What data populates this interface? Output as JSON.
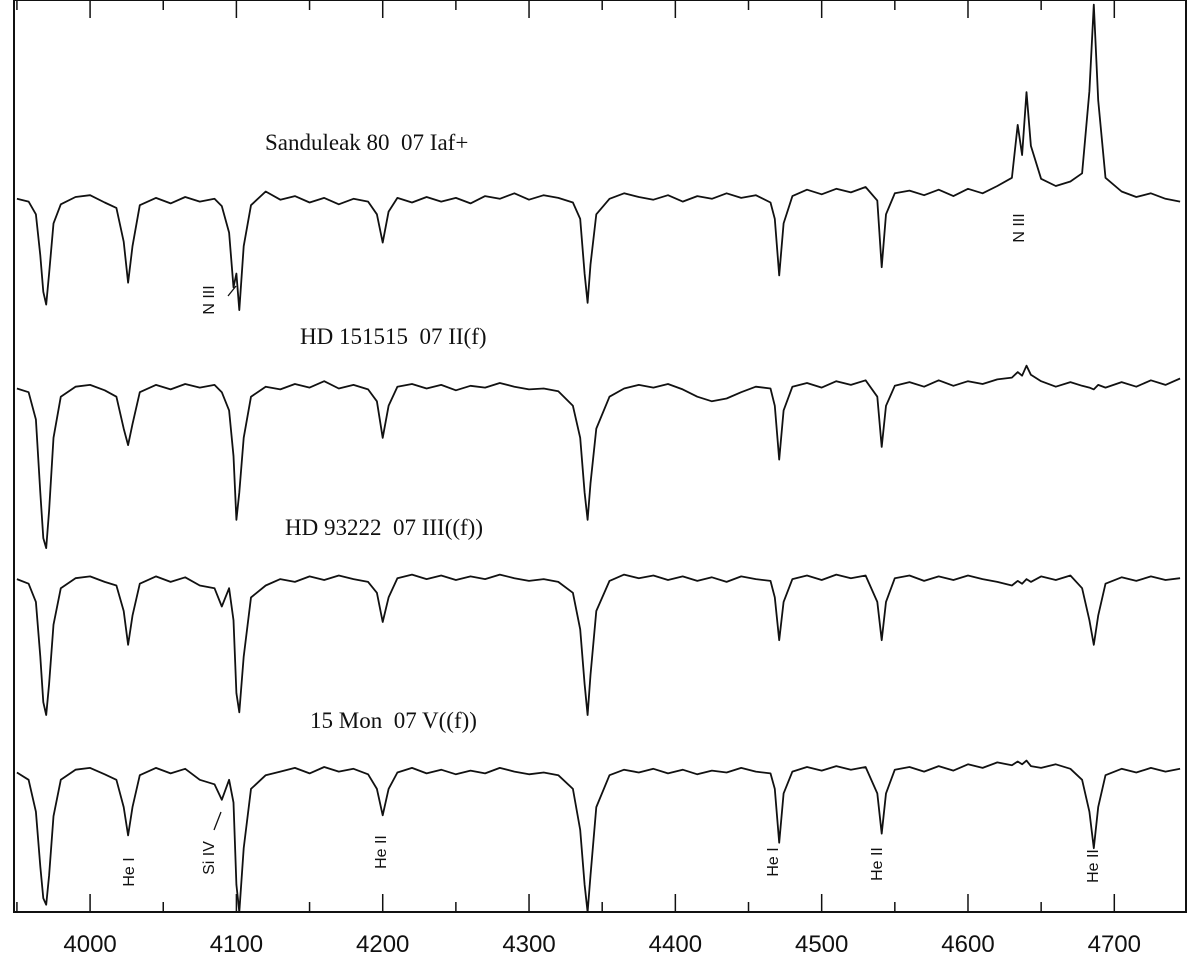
{
  "chart_data": {
    "type": "line",
    "x": [
      3950,
      3958,
      3963,
      3966,
      3968,
      3970,
      3972,
      3975,
      3980,
      3990,
      4000,
      4010,
      4018,
      4023,
      4026,
      4029,
      4034,
      4045,
      4055,
      4065,
      4075,
      4085,
      4090,
      4095,
      4098,
      4100,
      4102,
      4105,
      4110,
      4120,
      4130,
      4140,
      4150,
      4160,
      4170,
      4180,
      4190,
      4196,
      4200,
      4204,
      4210,
      4220,
      4230,
      4240,
      4250,
      4260,
      4270,
      4280,
      4290,
      4300,
      4310,
      4320,
      4330,
      4335,
      4338,
      4340,
      4342,
      4346,
      4355,
      4365,
      4375,
      4385,
      4395,
      4405,
      4415,
      4425,
      4435,
      4445,
      4455,
      4465,
      4468,
      4471,
      4474,
      4480,
      4490,
      4500,
      4510,
      4520,
      4530,
      4538,
      4541,
      4544,
      4550,
      4560,
      4570,
      4580,
      4590,
      4600,
      4610,
      4620,
      4630,
      4634,
      4637,
      4640,
      4643,
      4650,
      4660,
      4670,
      4678,
      4683,
      4686,
      4689,
      4694,
      4705,
      4715,
      4725,
      4735,
      4745
    ],
    "series": [
      {
        "name": "Sanduleak 80  07 Iaf+",
        "color": "#111111",
        "values": [
          78.2,
          77.9,
          76.5,
          72,
          68,
          66.6,
          70,
          75.5,
          77.6,
          78.4,
          78.6,
          77.8,
          77.2,
          73.5,
          69,
          73,
          77.5,
          78.3,
          77.7,
          78.4,
          77.9,
          78.2,
          77.4,
          74.5,
          68.5,
          70,
          66,
          73,
          77.5,
          79,
          78.1,
          78.5,
          77.8,
          78.3,
          77.6,
          78.2,
          77.9,
          76.5,
          73.4,
          76.8,
          78.3,
          77.8,
          78.4,
          77.9,
          78.3,
          77.7,
          78.5,
          78.2,
          78.8,
          78.1,
          78.6,
          78.3,
          77.8,
          76,
          70,
          66.8,
          71,
          76.5,
          78.2,
          78.8,
          78.4,
          78.1,
          78.6,
          77.9,
          78.5,
          78.2,
          78.8,
          78.3,
          78.6,
          77.8,
          76,
          69.8,
          75.5,
          78.5,
          79.2,
          78.7,
          79.3,
          78.9,
          79.5,
          78,
          70.7,
          76.5,
          78.8,
          79.1,
          78.6,
          79.2,
          78.5,
          79.3,
          78.8,
          79.6,
          80.5,
          86.3,
          83,
          89.9,
          84,
          80.4,
          79.6,
          80.1,
          81,
          90,
          99.5,
          89,
          80.5,
          79,
          78.4,
          78.8,
          78.2,
          77.9
        ]
      },
      {
        "name": "HD 151515  07 II(f)",
        "color": "#111111",
        "values": [
          57.4,
          57,
          54,
          46,
          41,
          39.9,
          44,
          52,
          56.5,
          57.6,
          57.8,
          57.2,
          56.5,
          53,
          51.2,
          53.5,
          57,
          57.8,
          57.3,
          57.9,
          57.5,
          57.8,
          57,
          55,
          50,
          43,
          46,
          52,
          56.5,
          57.6,
          57.3,
          57.9,
          57.5,
          58.2,
          57.4,
          57.8,
          57.3,
          56,
          52,
          55.5,
          57.6,
          57.9,
          57.4,
          57.8,
          57.2,
          57.7,
          57.5,
          58,
          57.6,
          57.3,
          57.4,
          57.1,
          55.5,
          52,
          46,
          43,
          47,
          53,
          56.5,
          57.4,
          57.8,
          57.5,
          57.9,
          57.3,
          56.5,
          56,
          56.3,
          57,
          57.6,
          57.4,
          55.5,
          49.6,
          55,
          57.6,
          58,
          57.5,
          58.2,
          57.8,
          58.3,
          56.5,
          51,
          55.5,
          57.7,
          58.1,
          57.6,
          58.3,
          57.7,
          58.2,
          57.9,
          58.4,
          58.6,
          59.2,
          58.8,
          59.9,
          58.9,
          58.2,
          57.6,
          58.1,
          57.7,
          57.5,
          57.3,
          57.8,
          57.5,
          58.1,
          57.6,
          58.3,
          57.8,
          58.5
        ]
      },
      {
        "name": "HD 93222  07 III((f))",
        "color": "#111111",
        "values": [
          36.5,
          36,
          34,
          28,
          23,
          21.6,
          25,
          31.5,
          35.5,
          36.6,
          36.8,
          36.2,
          35.8,
          33,
          29.3,
          32.5,
          36,
          36.8,
          36.2,
          36.7,
          35.8,
          35.5,
          33.5,
          35.5,
          32,
          24,
          21.9,
          28,
          34.5,
          35.8,
          36.5,
          36.2,
          36.8,
          36.4,
          36.9,
          36.5,
          36.2,
          35,
          31.8,
          34.5,
          36.6,
          37,
          36.5,
          36.9,
          36.4,
          36.8,
          36.5,
          37,
          36.6,
          36.3,
          36.5,
          36.2,
          35,
          31,
          25,
          21.6,
          26,
          33,
          36.3,
          37,
          36.6,
          36.9,
          36.4,
          36.8,
          36.3,
          36.7,
          36.2,
          36.8,
          36.5,
          36.3,
          34.5,
          29.8,
          34,
          36.5,
          36.9,
          36.4,
          37,
          36.6,
          36.9,
          34,
          29.8,
          34,
          36.6,
          36.9,
          36.3,
          36.8,
          36.4,
          36.9,
          36.5,
          36.2,
          35.8,
          36.3,
          36,
          36.5,
          36.2,
          36.8,
          36.4,
          36.9,
          35.5,
          32,
          29.3,
          32.5,
          36,
          36.7,
          36.3,
          36.8,
          36.4,
          36.6
        ]
      },
      {
        "name": "15 Mon  07 V((f))",
        "color": "#111111",
        "values": [
          15.3,
          14.5,
          11,
          5,
          1.5,
          0.8,
          4,
          10.5,
          14.5,
          15.6,
          15.8,
          15.1,
          14.5,
          11.5,
          8.4,
          11.5,
          15,
          15.8,
          15.2,
          15.7,
          14.5,
          14,
          12.3,
          14.5,
          12,
          3,
          0,
          7,
          13.5,
          15,
          15.4,
          15.8,
          15.2,
          15.9,
          15.4,
          15.7,
          15.1,
          13.5,
          10.6,
          13.5,
          15.3,
          15.8,
          15.2,
          15.6,
          15.1,
          15.5,
          15.2,
          15.8,
          15.4,
          15.1,
          15.3,
          15,
          13.5,
          9,
          3,
          0,
          4,
          11.5,
          15,
          15.6,
          15.3,
          15.7,
          15.2,
          15.6,
          15.1,
          15.5,
          15.3,
          15.8,
          15.4,
          15.2,
          13.5,
          7.6,
          13,
          15.4,
          15.9,
          15.5,
          16,
          15.6,
          15.9,
          13,
          8.6,
          13,
          15.6,
          15.9,
          15.4,
          16,
          15.5,
          16.2,
          15.8,
          16.4,
          16.1,
          16.5,
          16.2,
          16.6,
          16,
          15.8,
          16.2,
          15.7,
          14.5,
          11,
          7,
          11.5,
          15,
          15.7,
          15.3,
          15.8,
          15.4,
          15.7
        ]
      }
    ],
    "annotations": [
      "N III",
      "N III",
      "He I",
      "Si IV",
      "He II",
      "He I",
      "He II",
      "He II"
    ],
    "xlim": [
      3948,
      4749
    ],
    "ylim": [
      0,
      100
    ],
    "xticks": [
      4000,
      4100,
      4200,
      4300,
      4400,
      4500,
      4600,
      4700
    ],
    "xminorticks": [
      3950,
      4050,
      4150,
      4250,
      4350,
      4450,
      4550,
      4650
    ]
  }
}
